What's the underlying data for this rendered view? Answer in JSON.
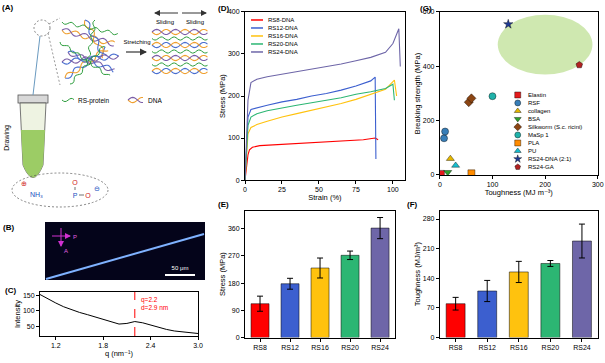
{
  "panels": {
    "A": {
      "label": "(A)",
      "drawing": "Drawing",
      "stretching": "Stretching",
      "sliding": [
        "Sliding",
        "Sliding"
      ],
      "protein": "RS-protein",
      "dna": "DNA",
      "amine": "NH₃",
      "amine_charge": "⊕",
      "phosphate": [
        "O",
        "P",
        "O"
      ],
      "phosphate_charge": "⊖"
    },
    "B": {
      "label": "(B)",
      "scale_bar": "50 μm",
      "polarizer": "P",
      "analyzer": "A"
    }
  },
  "chart_data": [
    {
      "type": "line",
      "title": "(C)",
      "x_label": "q (nm⁻¹)",
      "y_label": "Intensity",
      "x": [
        1.0,
        1.1,
        1.2,
        1.3,
        1.4,
        1.5,
        1.6,
        1.7,
        1.8,
        1.9,
        2.0,
        2.1,
        2.2,
        2.3,
        2.4,
        2.5,
        2.6,
        2.7,
        2.8,
        2.9,
        3.0
      ],
      "values": [
        152,
        138,
        125,
        113,
        103,
        95,
        88,
        80,
        72,
        64,
        58,
        60,
        66,
        62,
        55,
        47,
        41,
        36,
        33,
        30,
        28
      ],
      "color": "#000000",
      "xlim": [
        1.0,
        3.0
      ],
      "xticks": [
        1.2,
        1.8,
        2.4,
        {
          "value": 3.0,
          "label": "3.0"
        }
      ],
      "ylim": [
        20,
        160
      ],
      "yticks": [
        50,
        100,
        150
      ],
      "grid": false,
      "marker_line": {
        "x": 2.2,
        "color": "#ff0000",
        "line_style": "dashed"
      },
      "annotations": [
        {
          "text": "q=2.2",
          "x": 2.25,
          "y": 135,
          "color": "#ff0000"
        },
        {
          "text": "d=2.9 nm",
          "x": 2.25,
          "y": 110,
          "color": "#ff0000"
        }
      ]
    },
    {
      "type": "line",
      "title": "(D)",
      "x_label": "Strain (%)",
      "y_label": "Stress (MPa)",
      "xlim": [
        0,
        108
      ],
      "xticks": [
        0,
        25,
        50,
        75,
        100
      ],
      "ylim": [
        0,
        400
      ],
      "yticks": [
        0,
        100,
        200,
        300,
        400
      ],
      "grid": false,
      "legend": "upper left",
      "series": [
        {
          "name": "RS8-DNA",
          "color": "#ff0000",
          "x": [
            0,
            1,
            2,
            3,
            5,
            10,
            20,
            30,
            40,
            50,
            60,
            70,
            80,
            88,
            90
          ],
          "values": [
            0,
            35,
            60,
            72,
            78,
            82,
            84,
            86,
            88,
            90,
            92,
            94,
            96,
            100,
            96
          ]
        },
        {
          "name": "RS12-DNA",
          "color": "#3c5fcf",
          "x": [
            0,
            1,
            2,
            4,
            8,
            15,
            25,
            35,
            45,
            55,
            65,
            75,
            85,
            88,
            88.5
          ],
          "values": [
            0,
            90,
            150,
            168,
            172,
            178,
            186,
            192,
            200,
            206,
            214,
            224,
            236,
            245,
            50
          ]
        },
        {
          "name": "RS16-DNA",
          "color": "#ffc20e",
          "x": [
            0,
            1,
            2,
            4,
            8,
            15,
            25,
            35,
            45,
            55,
            65,
            75,
            85,
            95,
            101,
            102.5
          ],
          "values": [
            0,
            70,
            110,
            125,
            132,
            140,
            150,
            158,
            166,
            174,
            182,
            192,
            204,
            216,
            238,
            200
          ]
        },
        {
          "name": "RS20-DNA",
          "color": "#2cb673",
          "x": [
            0,
            1,
            2,
            4,
            8,
            15,
            25,
            35,
            45,
            55,
            65,
            75,
            85,
            95,
            100,
            101
          ],
          "values": [
            0,
            80,
            130,
            150,
            158,
            165,
            172,
            178,
            184,
            190,
            196,
            204,
            210,
            218,
            228,
            190
          ]
        },
        {
          "name": "RS24-DNA",
          "color": "#6e66a8",
          "x": [
            0,
            1,
            2,
            4,
            8,
            15,
            25,
            35,
            45,
            55,
            65,
            75,
            85,
            95,
            100,
            104,
            105
          ],
          "values": [
            0,
            110,
            190,
            232,
            240,
            246,
            252,
            258,
            264,
            270,
            276,
            284,
            292,
            304,
            325,
            360,
            270
          ]
        }
      ]
    },
    {
      "type": "bar",
      "title": "(E)",
      "y_label": "Stress (MPa)",
      "categories": [
        "RS8",
        "RS12",
        "RS16",
        "RS20",
        "RS24"
      ],
      "values": [
        112,
        178,
        230,
        272,
        362
      ],
      "errors": [
        25,
        18,
        33,
        14,
        35
      ],
      "colors": [
        "#ff0000",
        "#3c5fcf",
        "#ffc20e",
        "#2cb673",
        "#6e66a8"
      ],
      "ylim": [
        0,
        420
      ],
      "yticks": [
        0,
        90,
        180,
        270,
        360
      ],
      "grid": false
    },
    {
      "type": "bar",
      "title": "(F)",
      "y_label": "Toughness (MJ/m³)",
      "categories": [
        "RS8",
        "RS12",
        "RS16",
        "RS20",
        "RS24"
      ],
      "values": [
        80,
        110,
        155,
        175,
        228
      ],
      "errors": [
        15,
        25,
        25,
        7,
        40
      ],
      "colors": [
        "#ff0000",
        "#3c5fcf",
        "#ffc20e",
        "#2cb673",
        "#6e66a8"
      ],
      "ylim": [
        0,
        300
      ],
      "yticks": [
        0,
        70,
        140,
        210,
        280
      ],
      "grid": false
    },
    {
      "type": "scatter",
      "title": "(G)",
      "x_label": "Toughness (MJ m⁻³)",
      "y_label": "Breaking strength (MPa)",
      "xlim": [
        0,
        300
      ],
      "xticks": [
        0,
        100,
        200,
        300
      ],
      "ylim": [
        0,
        600
      ],
      "yticks": [
        0,
        200,
        400,
        600
      ],
      "grid": false,
      "legend": "lower right",
      "highlight": {
        "x": [
          110,
          290
        ],
        "y": [
          370,
          590
        ],
        "color": "#cfe8b0"
      },
      "series": [
        {
          "name": "Elastin",
          "color": "#e41a1c",
          "marker": "square",
          "x": [
            2
          ],
          "values": [
            4
          ]
        },
        {
          "name": "RSF",
          "color": "#377eb8",
          "marker": "circle",
          "x": [
            8,
            10
          ],
          "values": [
            135,
            160
          ]
        },
        {
          "name": "collagen",
          "color": "#e6b800",
          "marker": "triangle-up",
          "x": [
            20
          ],
          "values": [
            60
          ]
        },
        {
          "name": "BSA",
          "color": "#2ca02c",
          "marker": "triangle-down",
          "x": [
            15
          ],
          "values": [
            10
          ]
        },
        {
          "name": "Silkworm (S.c. ricini)",
          "color": "#8b4513",
          "marker": "diamond",
          "x": [
            55,
            60
          ],
          "values": [
            268,
            282
          ]
        },
        {
          "name": "MaSp 1",
          "color": "#20b2aa",
          "marker": "circle",
          "x": [
            100
          ],
          "values": [
            290
          ]
        },
        {
          "name": "PLA",
          "color": "#ff8c00",
          "marker": "square",
          "x": [
            60
          ],
          "values": [
            6
          ]
        },
        {
          "name": "PU",
          "color": "#17becf",
          "marker": "triangle-up",
          "x": [
            30
          ],
          "values": [
            35
          ]
        },
        {
          "name": "RS24-DNA (2:1)",
          "color": "#1f3a93",
          "marker": "star",
          "x": [
            130
          ],
          "values": [
            555
          ]
        },
        {
          "name": "RS24-GA",
          "color": "#b22222",
          "marker": "pentagon",
          "x": [
            265
          ],
          "values": [
            405
          ]
        }
      ]
    }
  ]
}
